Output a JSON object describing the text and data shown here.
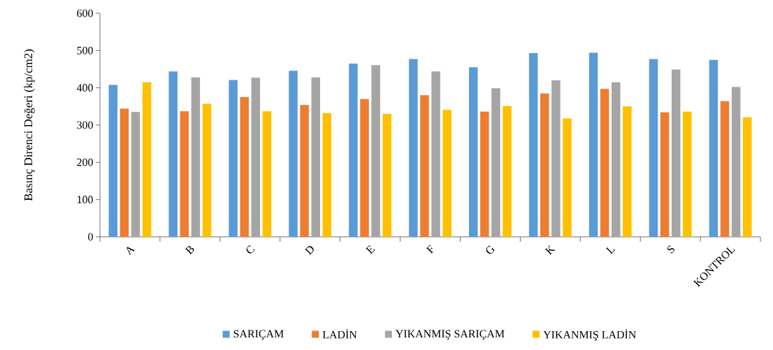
{
  "chart_data": {
    "type": "bar",
    "ylabel": "Basınç Direnci Değeri (kp/cm2)",
    "categories": [
      "A",
      "B",
      "C",
      "D",
      "E",
      "F",
      "G",
      "K",
      "L",
      "S",
      "KONTROL"
    ],
    "series": [
      {
        "name": "SARIÇAM",
        "color": "#5b9bd5",
        "values": [
          408,
          444,
          421,
          446,
          465,
          477,
          455,
          493,
          494,
          477,
          475
        ]
      },
      {
        "name": "LADİN",
        "color": "#ed7d31",
        "values": [
          344,
          337,
          375,
          354,
          370,
          380,
          336,
          385,
          397,
          334,
          364
        ]
      },
      {
        "name": "YIKANMIŞ SARIÇAM",
        "color": "#a5a5a5",
        "values": [
          335,
          428,
          427,
          428,
          461,
          444,
          399,
          420,
          415,
          449,
          402
        ]
      },
      {
        "name": "YIKANMIŞ LADİN",
        "color": "#ffc000",
        "values": [
          415,
          357,
          337,
          332,
          330,
          341,
          351,
          318,
          350,
          336,
          321
        ]
      }
    ],
    "ylim": [
      0,
      600
    ],
    "yticks": [
      0,
      100,
      200,
      300,
      400,
      500,
      600
    ],
    "grid": false,
    "legend": "bottom"
  }
}
